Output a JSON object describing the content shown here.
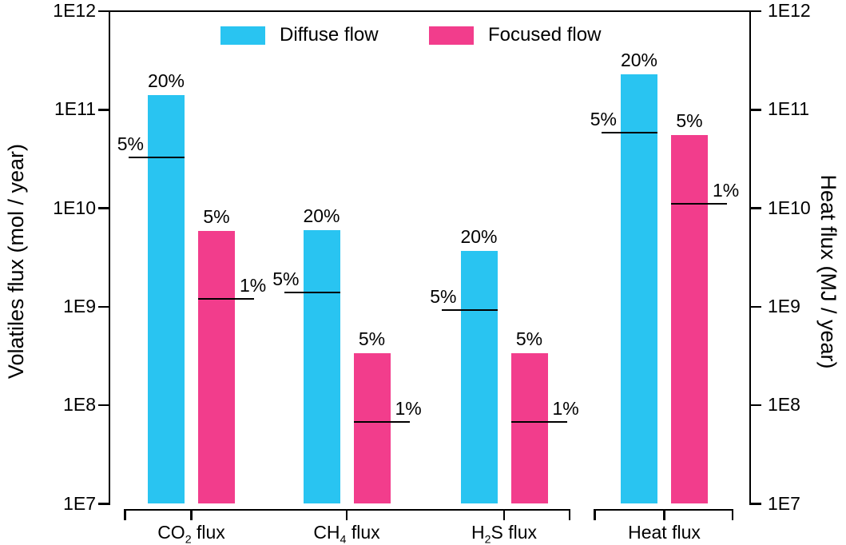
{
  "chart_data": {
    "type": "bar",
    "scale_y": "log10",
    "ylim": [
      10000000.0,
      1000000000000.0
    ],
    "ytick_labels": [
      "1E12",
      "1E11",
      "1E10",
      "1E9",
      "1E8",
      "1E7"
    ],
    "left_axis_title": "Volatiles flux (mol / year)",
    "right_axis_title": "Heat flux (MJ / year)",
    "grid": "off",
    "legend_position": "top",
    "legend": [
      {
        "label": "Diffuse flow",
        "color": "#29C4F1"
      },
      {
        "label": "Focused flow",
        "color": "#F23D8C"
      }
    ],
    "axis_color": "#000000",
    "text_color": "#000000",
    "groups": [
      {
        "category": {
          "pre": "CO",
          "sub": "2",
          "post": " flux"
        },
        "bracket": 0,
        "bars": [
          {
            "series": "Diffuse flow",
            "value": 140000000000.0,
            "top_label": "20%",
            "marker": {
              "value": 33000000000.0,
              "label": "5%",
              "side": "left"
            }
          },
          {
            "series": "Focused flow",
            "value": 5900000000.0,
            "top_label": "5%",
            "marker": {
              "value": 1200000000.0,
              "label": "1%",
              "side": "right"
            }
          }
        ]
      },
      {
        "category": {
          "pre": "CH",
          "sub": "4",
          "post": " flux"
        },
        "bracket": 0,
        "bars": [
          {
            "series": "Diffuse flow",
            "value": 6000000000.0,
            "top_label": "20%",
            "marker": {
              "value": 1400000000.0,
              "label": "5%",
              "side": "left"
            }
          },
          {
            "series": "Focused flow",
            "value": 340000000.0,
            "top_label": "5%",
            "marker": {
              "value": 68000000.0,
              "label": "1%",
              "side": "right"
            }
          }
        ]
      },
      {
        "category": {
          "pre": "H",
          "sub": "2",
          "post": "S flux"
        },
        "bracket": 0,
        "bars": [
          {
            "series": "Diffuse flow",
            "value": 3700000000.0,
            "top_label": "20%",
            "marker": {
              "value": 920000000.0,
              "label": "5%",
              "side": "left"
            }
          },
          {
            "series": "Focused flow",
            "value": 340000000.0,
            "top_label": "5%",
            "marker": {
              "value": 68000000.0,
              "label": "1%",
              "side": "right"
            }
          }
        ]
      },
      {
        "category": {
          "pre": "Heat flux",
          "sub": "",
          "post": ""
        },
        "bracket": 1,
        "bars": [
          {
            "series": "Diffuse flow",
            "value": 230000000000.0,
            "top_label": "20%",
            "marker": {
              "value": 58000000000.0,
              "label": "5%",
              "side": "left"
            }
          },
          {
            "series": "Focused flow",
            "value": 55000000000.0,
            "top_label": "5%",
            "marker": {
              "value": 11000000000.0,
              "label": "1%",
              "side": "right"
            }
          }
        ]
      }
    ]
  }
}
